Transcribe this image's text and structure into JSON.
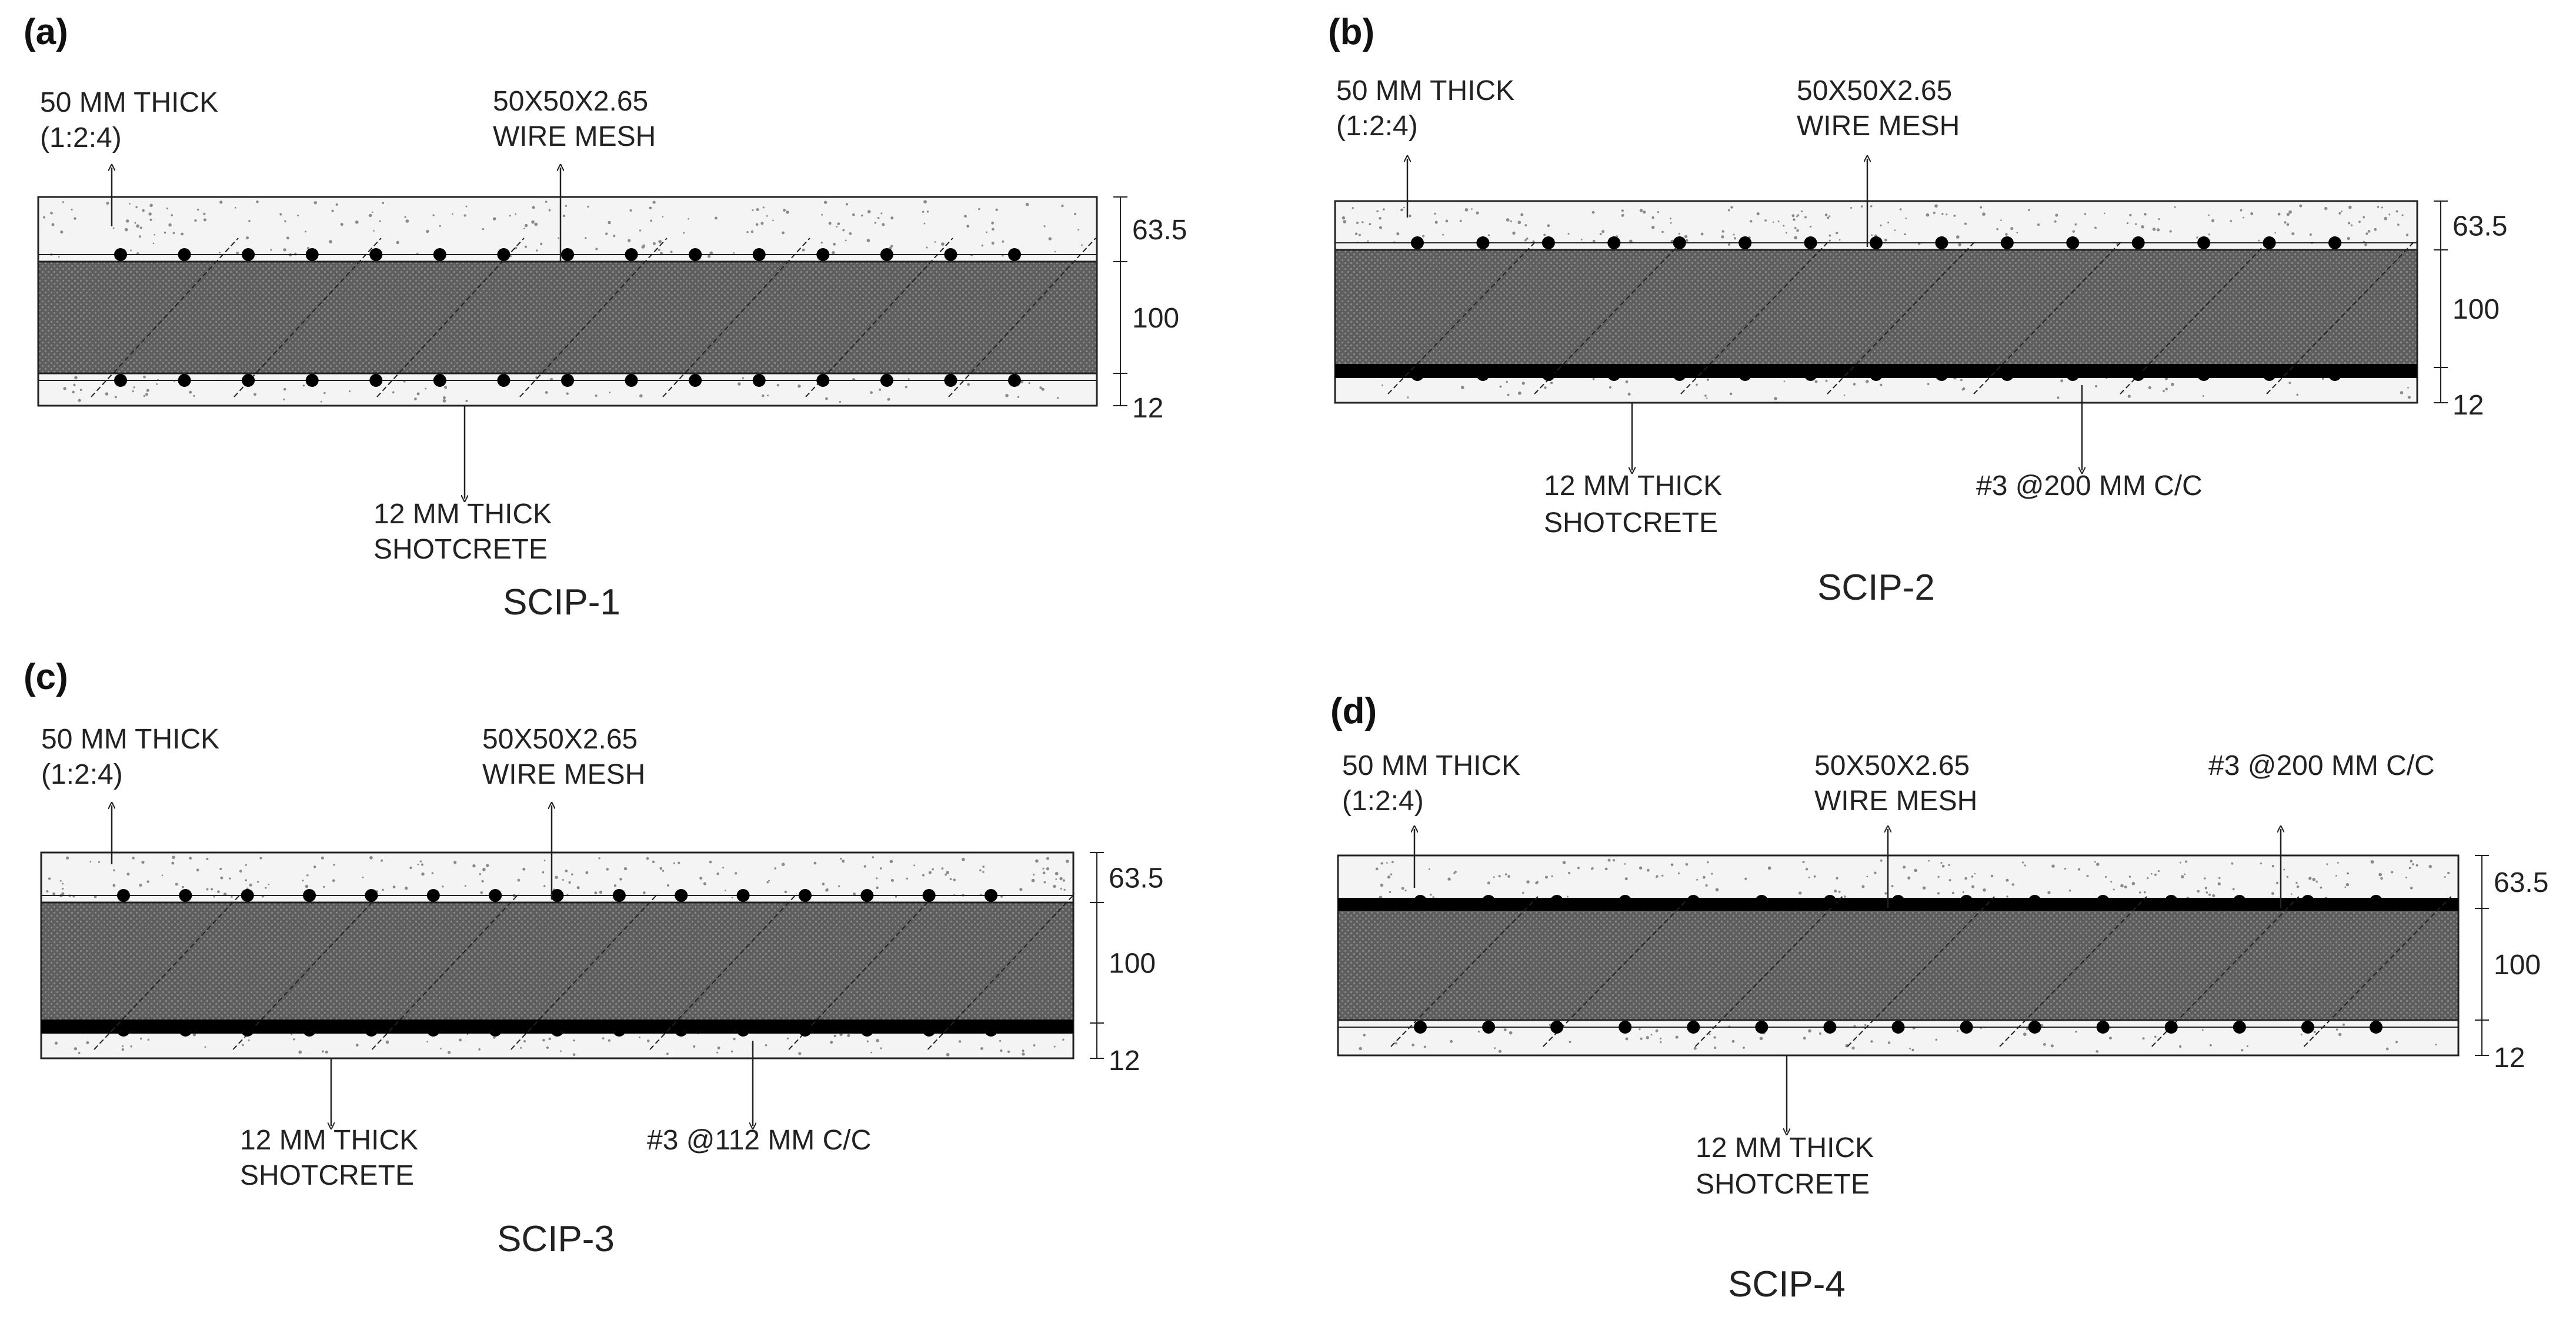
{
  "colors": {
    "line": "#222222",
    "concrete": "#f4f4f4",
    "core": "#5c5c5c",
    "rebar": "#000000"
  },
  "panels": [
    {
      "letter": "(a)",
      "caption": "SCIP-1",
      "top_label": "50 MM THICK",
      "top_label_mix": "(1:2:4)",
      "mesh_label": "50X50X2.65",
      "mesh_label_2": "WIRE MESH",
      "bottom_label": "12 MM THICK",
      "bottom_label_2": "SHOTCRETE",
      "dims": [
        "63.5",
        "100",
        "12"
      ],
      "extra_bar_top": false,
      "extra_bar_bottom": false
    },
    {
      "letter": "(b)",
      "caption": "SCIP-2",
      "top_label": "50 MM THICK",
      "top_label_mix": "(1:2:4)",
      "mesh_label": "50X50X2.65",
      "mesh_label_2": "WIRE MESH",
      "bottom_label": "12 MM THICK",
      "bottom_label_2": "SHOTCRETE",
      "rebar_label": "#3 @200 MM C/C",
      "dims": [
        "63.5",
        "100",
        "12"
      ],
      "extra_bar_top": false,
      "extra_bar_bottom": true
    },
    {
      "letter": "(c)",
      "caption": "SCIP-3",
      "top_label": "50 MM THICK",
      "top_label_mix": "(1:2:4)",
      "mesh_label": "50X50X2.65",
      "mesh_label_2": "WIRE MESH",
      "bottom_label": "12 MM THICK",
      "bottom_label_2": "SHOTCRETE",
      "rebar_label": "#3 @112 MM C/C",
      "dims": [
        "63.5",
        "100",
        "12"
      ],
      "extra_bar_top": false,
      "extra_bar_bottom": true
    },
    {
      "letter": "(d)",
      "caption": "SCIP-4",
      "top_label": "50 MM THICK",
      "top_label_mix": "(1:2:4)",
      "mesh_label": "50X50X2.65",
      "mesh_label_2": "WIRE MESH",
      "bottom_label": "12 MM THICK",
      "bottom_label_2": "SHOTCRETE",
      "rebar_label": "#3 @200 MM C/C",
      "dims": [
        "63.5",
        "100",
        "12"
      ],
      "extra_bar_top": true,
      "extra_bar_bottom": false
    }
  ]
}
